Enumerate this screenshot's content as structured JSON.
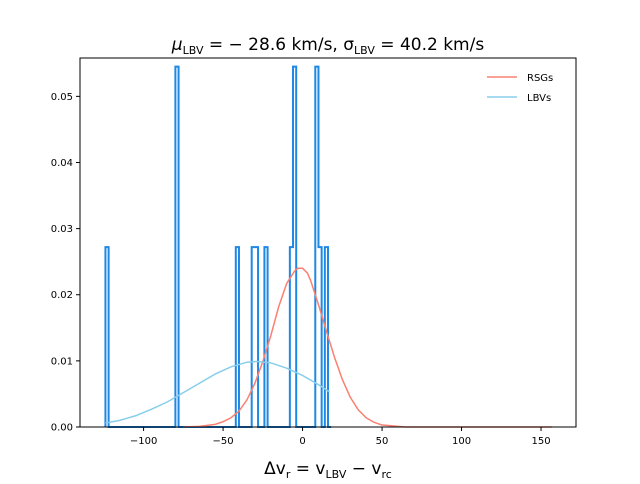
{
  "chart_data": {
    "type": "histogram+line",
    "title_parts": {
      "mu": "μ",
      "mu_sub": "LBV",
      "mu_rest": " = − 28.6 km/s,  ",
      "sigma": "σ",
      "sigma_sub": "LBV",
      "sigma_rest": " = 40.2 km/s"
    },
    "mu_value": -28.6,
    "sigma_value": 40.2,
    "xlabel_parts": {
      "main": "Δv",
      "sub1": "r",
      "eq": " = v",
      "sub2": "LBV",
      "minus": " − v",
      "sub3": "rc"
    },
    "xlim": [
      -140,
      172
    ],
    "ylim": [
      0,
      0.0558
    ],
    "xticks": [
      -100,
      -50,
      0,
      50,
      100,
      150
    ],
    "xtick_labels": [
      "−100",
      "−50",
      "0",
      "50",
      "100",
      "150"
    ],
    "yticks": [
      0.0,
      0.01,
      0.02,
      0.03,
      0.04,
      0.05
    ],
    "ytick_labels": [
      "0.00",
      "0.01",
      "0.02",
      "0.03",
      "0.04",
      "0.05"
    ],
    "legend": [
      {
        "label": "RSGs",
        "color": "#fa8072"
      },
      {
        "label": "LBVs",
        "color": "#87ceeb"
      }
    ],
    "histogram": {
      "color": "#1e88e5",
      "edges": [
        -124,
        -122,
        -120,
        -118,
        -116,
        -114,
        -112,
        -110,
        -108,
        -106,
        -104,
        -102,
        -100,
        -98,
        -96,
        -94,
        -92,
        -90,
        -88,
        -86,
        -84,
        -82,
        -80,
        -78,
        -76,
        -74,
        -72,
        -70,
        -68,
        -66,
        -64,
        -62,
        -60,
        -58,
        -56,
        -54,
        -52,
        -50,
        -48,
        -46,
        -44,
        -42,
        -40,
        -38,
        -36,
        -34,
        -32,
        -30,
        -28,
        -26,
        -24,
        -22,
        -20,
        -18,
        -16,
        -14,
        -12,
        -10,
        -8,
        -6,
        -4,
        -2,
        0,
        2,
        4,
        6,
        8,
        10,
        12,
        14,
        16,
        18
      ],
      "values": [
        0.0272,
        0.0,
        0.0,
        0.0,
        0.0,
        0.0,
        0.0,
        0.0,
        0.0,
        0.0,
        0.0,
        0.0,
        0.0,
        0.0,
        0.0,
        0.0,
        0.0,
        0.0,
        0.0,
        0.0,
        0.0,
        0.0,
        0.0545,
        0.0,
        0.0,
        0.0,
        0.0,
        0.0,
        0.0,
        0.0,
        0.0,
        0.0,
        0.0,
        0.0,
        0.0,
        0.0,
        0.0,
        0.0,
        0.0,
        0.0,
        0.0,
        0.0272,
        0.0,
        0.0,
        0.0,
        0.0,
        0.0272,
        0.0272,
        0.0,
        0.0,
        0.0272,
        0.0,
        0.0,
        0.0,
        0.0,
        0.0,
        0.0,
        0.0,
        0.0272,
        0.0545,
        0.0,
        0.0,
        0.0,
        0.0,
        0.0,
        0.0,
        0.0545,
        0.0272,
        0.0,
        0.0272,
        0.0
      ]
    },
    "series": [
      {
        "name": "RSGs",
        "color": "#fa8072",
        "x": [
          -75,
          -65,
          -55,
          -50,
          -45,
          -40,
          -35,
          -30,
          -25,
          -20,
          -15,
          -10,
          -5,
          -3,
          0,
          3,
          5,
          10,
          15,
          20,
          25,
          30,
          35,
          40,
          45,
          50,
          55,
          60,
          65,
          70,
          80,
          90,
          100,
          110,
          120,
          130,
          140,
          150,
          157
        ],
        "y": [
          0.0,
          0.0001,
          0.0004,
          0.0008,
          0.0014,
          0.0024,
          0.0041,
          0.0066,
          0.0099,
          0.0138,
          0.0182,
          0.0217,
          0.0236,
          0.024,
          0.024,
          0.0233,
          0.0222,
          0.0185,
          0.0145,
          0.0106,
          0.0072,
          0.0045,
          0.0026,
          0.0014,
          0.0007,
          0.0003,
          0.0002,
          0.0001,
          0.0,
          0.0,
          0.0,
          0.0,
          0.0,
          0.0,
          0.0,
          0.0,
          0.0,
          0.0,
          0.0
        ]
      },
      {
        "name": "LBVs",
        "color": "#87ceeb",
        "x": [
          -124,
          -115,
          -105,
          -95,
          -85,
          -75,
          -65,
          -55,
          -45,
          -35,
          -28.6,
          -20,
          -10,
          0,
          10,
          17
        ],
        "y": [
          0.0006,
          0.001,
          0.0017,
          0.0027,
          0.0038,
          0.0052,
          0.0066,
          0.008,
          0.0091,
          0.0098,
          0.0099,
          0.0097,
          0.0089,
          0.0078,
          0.0064,
          0.0053
        ]
      }
    ]
  }
}
